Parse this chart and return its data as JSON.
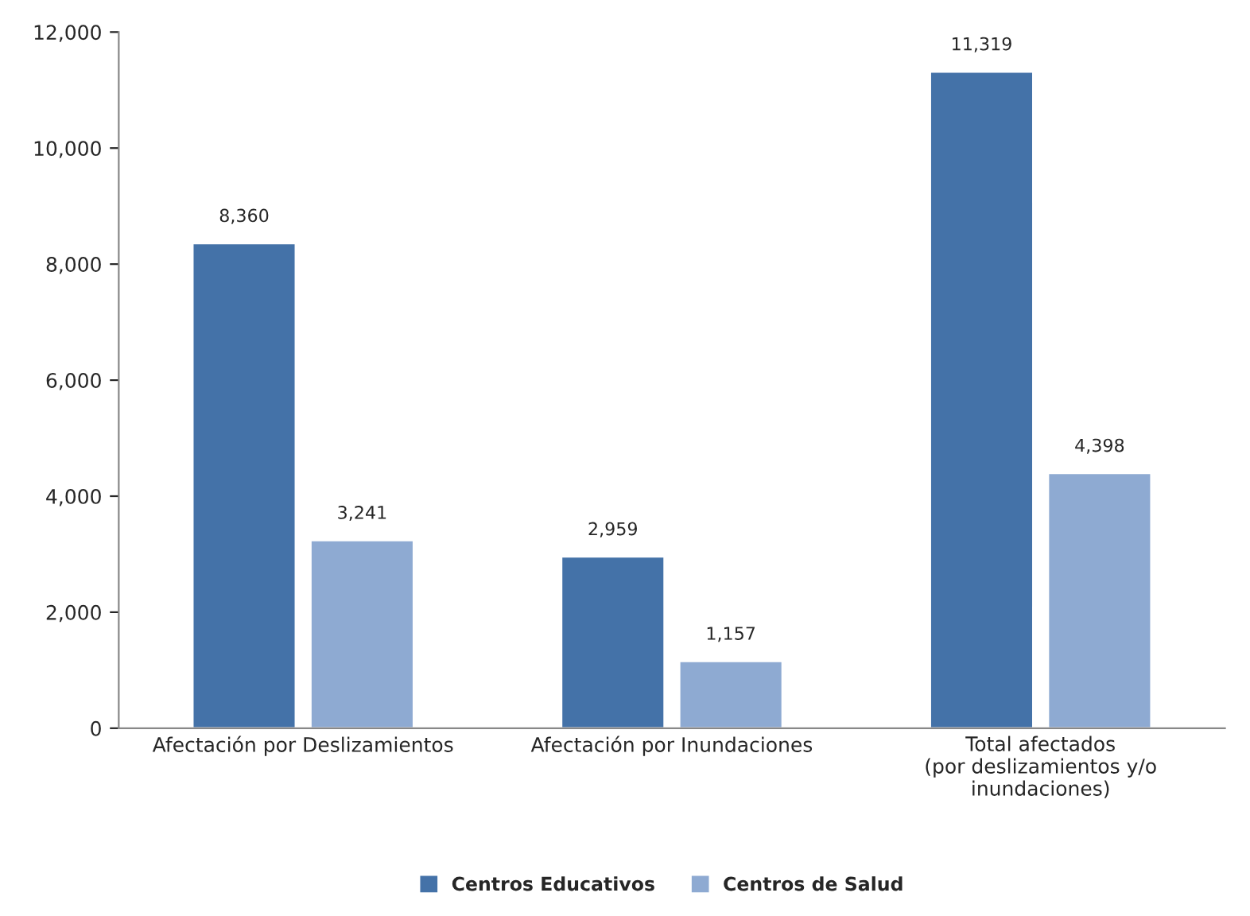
{
  "chart_data": {
    "type": "bar",
    "categories": [
      "Afectación por Deslizamientos",
      "Afectación por Inundaciones",
      "Total afectados\n(por deslizamientos y/o\ninundaciones)"
    ],
    "series": [
      {
        "name": "Centros Educativos",
        "color": "#4472a8",
        "values": [
          8360,
          2959,
          11319
        ],
        "value_labels": [
          "8,360",
          "2,959",
          "11,319"
        ]
      },
      {
        "name": "Centros de Salud",
        "color": "#8eaad2",
        "values": [
          3241,
          1157,
          4398
        ],
        "value_labels": [
          "3,241",
          "1,157",
          "4,398"
        ]
      }
    ],
    "ylim": [
      0,
      12000
    ],
    "yticks": [
      {
        "value": 0,
        "label": "0"
      },
      {
        "value": 2000,
        "label": "2,000"
      },
      {
        "value": 4000,
        "label": "4,000"
      },
      {
        "value": 6000,
        "label": "6,000"
      },
      {
        "value": 8000,
        "label": "8,000"
      },
      {
        "value": 10000,
        "label": "10,000"
      },
      {
        "value": 12000,
        "label": "12,000"
      }
    ],
    "grid": false,
    "legend": "bottom"
  }
}
